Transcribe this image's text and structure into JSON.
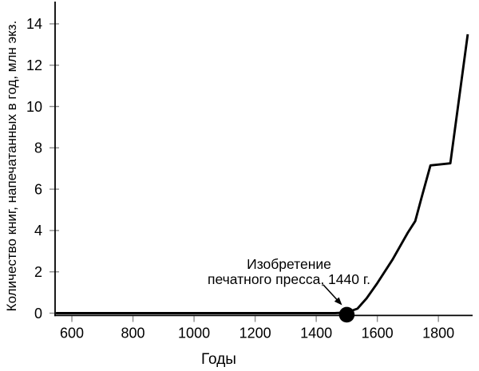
{
  "chart_data": {
    "type": "line",
    "title": "",
    "xlabel": "Годы",
    "ylabel": "Количество книг, напечатанных в год, млн экз.",
    "xlim": [
      545,
      1912
    ],
    "ylim": [
      0,
      15
    ],
    "x_ticks": [
      600,
      800,
      1000,
      1200,
      1400,
      1600,
      1800
    ],
    "y_ticks": [
      0,
      2,
      4,
      6,
      8,
      10,
      12,
      14
    ],
    "grid": false,
    "legend": "none",
    "series": [
      {
        "points": [
          [
            548,
            0
          ],
          [
            800,
            0
          ],
          [
            1050,
            0
          ],
          [
            1300,
            0
          ],
          [
            1460,
            0
          ],
          [
            1500,
            0.03
          ],
          [
            1535,
            0.22
          ],
          [
            1565,
            0.72
          ],
          [
            1600,
            1.45
          ],
          [
            1650,
            2.6
          ],
          [
            1700,
            3.9
          ],
          [
            1724,
            4.45
          ],
          [
            1745,
            5.6
          ],
          [
            1774,
            7.15
          ],
          [
            1839,
            7.25
          ],
          [
            1896,
            13.5
          ]
        ]
      }
    ],
    "marker_point": {
      "year": 1500,
      "value": 0
    },
    "annotation": {
      "line1": "Изобретение",
      "line2": "печатного пресса, 1440 г."
    }
  },
  "colors": {
    "background": "#ffffff",
    "axis": "#000000",
    "ticks": "#8c8c8c",
    "curve": "#000000",
    "marker": "#000000",
    "text": "#000000"
  }
}
